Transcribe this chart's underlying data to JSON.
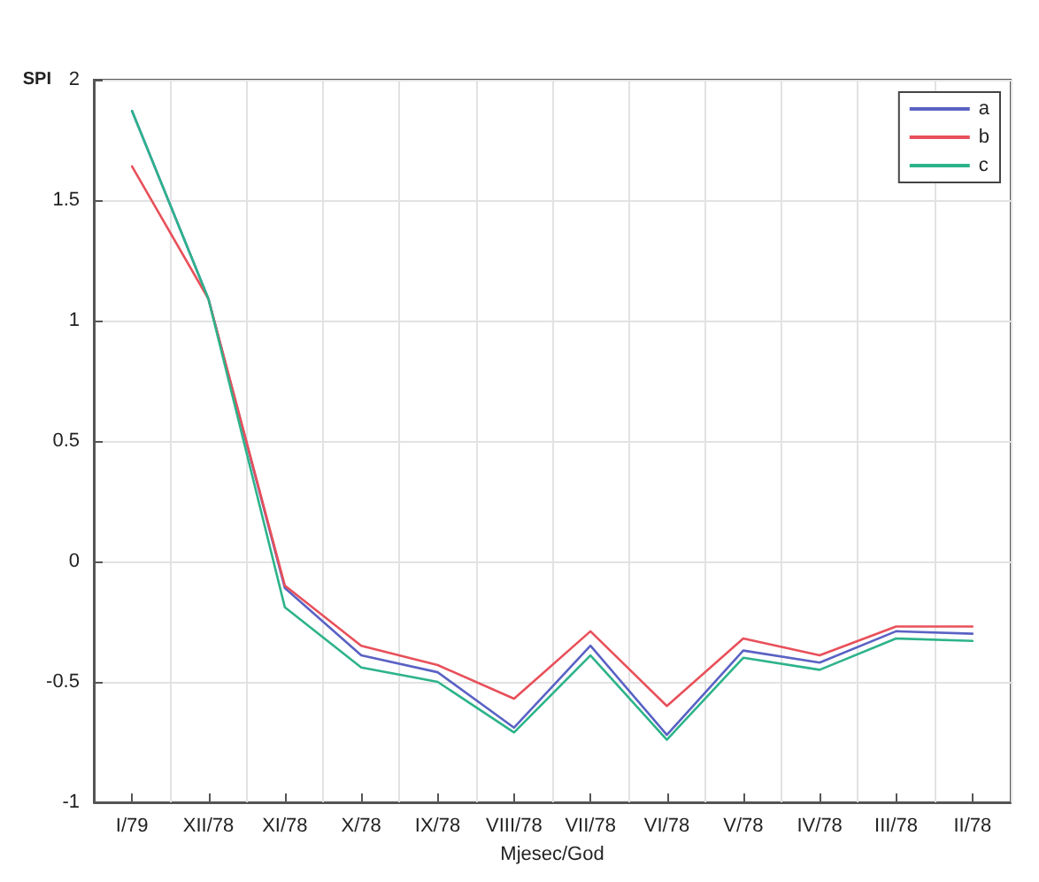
{
  "chart_data": {
    "type": "line",
    "xlabel": "Mjesec/God",
    "ylabel": "SPI",
    "categories": [
      "I/79",
      "XII/78",
      "XI/78",
      "X/78",
      "IX/78",
      "VIII/78",
      "VII/78",
      "VI/78",
      "V/78",
      "IV/78",
      "III/78",
      "II/78"
    ],
    "ylim": [
      -1,
      2
    ],
    "yticks": [
      -1,
      -0.5,
      0,
      0.5,
      1,
      1.5,
      2
    ],
    "series": [
      {
        "name": "a",
        "color": "#5a62c4",
        "values": [
          1.87,
          1.09,
          -0.11,
          -0.39,
          -0.46,
          -0.69,
          -0.35,
          -0.72,
          -0.37,
          -0.42,
          -0.29,
          -0.3
        ]
      },
      {
        "name": "b",
        "color": "#e8505a",
        "values": [
          1.64,
          1.09,
          -0.1,
          -0.35,
          -0.43,
          -0.57,
          -0.29,
          -0.6,
          -0.32,
          -0.39,
          -0.27,
          -0.27
        ]
      },
      {
        "name": "c",
        "color": "#2db38a",
        "values": [
          1.87,
          1.09,
          -0.19,
          -0.44,
          -0.5,
          -0.71,
          -0.39,
          -0.74,
          -0.4,
          -0.45,
          -0.32,
          -0.33
        ]
      }
    ],
    "grid": true,
    "legend": "top right",
    "marker": "none",
    "line_style": "solid"
  }
}
